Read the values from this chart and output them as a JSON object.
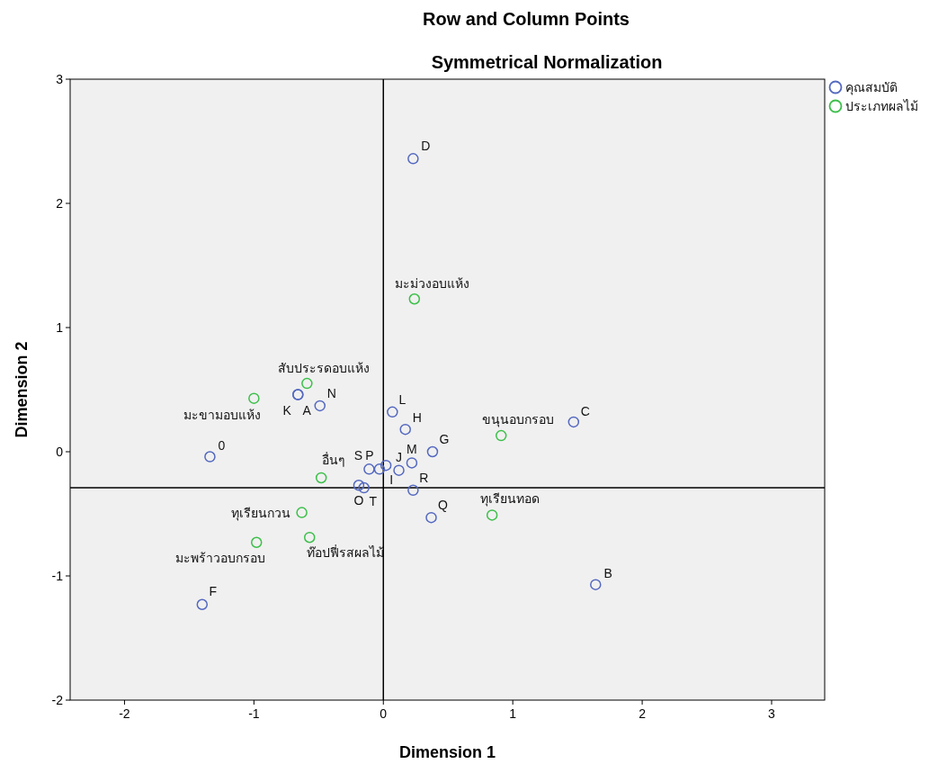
{
  "chart_data": {
    "type": "scatter",
    "title": "Row and Column Points",
    "subtitle": "Symmetrical Normalization",
    "xlabel": "Dimension 1",
    "ylabel": "Dimension 2",
    "xlim": [
      -2.42,
      3.41
    ],
    "ylim": [
      -2,
      3
    ],
    "xticks": [
      -2,
      -1,
      0,
      1,
      2,
      3
    ],
    "yticks": [
      -2,
      -1,
      0,
      1,
      2,
      3
    ],
    "grid": false,
    "legend": "top right",
    "marker": "circle",
    "ref_lines": [
      {
        "axis": "x",
        "value": 0,
        "color": "#000000"
      },
      {
        "axis": "y",
        "value": -0.29,
        "color": "#000000"
      }
    ],
    "series": [
      {
        "name": "คุณสมบัติ",
        "color": "#5468c0",
        "x": [
          0.23,
          1.47,
          1.64,
          -1.4,
          -1.34,
          -0.66,
          -0.66,
          -0.49,
          0.07,
          0.17,
          0.38,
          0.22,
          0.12,
          0.02,
          -0.11,
          -0.03,
          0.23,
          -0.19,
          -0.15,
          0.37
        ],
        "values": [
          2.36,
          0.24,
          -1.07,
          -1.23,
          -0.04,
          0.46,
          0.46,
          0.37,
          0.32,
          0.18,
          0.0,
          -0.09,
          -0.15,
          -0.11,
          -0.14,
          -0.14,
          -0.31,
          -0.27,
          -0.29,
          -0.53
        ],
        "value_labels": [
          "D",
          "C",
          "B",
          "F",
          "0",
          "K",
          "A",
          "N",
          "L",
          "H",
          "G",
          "M",
          "J",
          "I",
          "S",
          "P",
          "R",
          "O",
          "T",
          "Q"
        ]
      },
      {
        "name": "ประเภทผลไม้",
        "color": "#3cbf4a",
        "x": [
          0.24,
          -0.59,
          -1.0,
          -0.48,
          0.91,
          0.84,
          -0.63,
          -0.57,
          -0.98
        ],
        "values": [
          1.23,
          0.55,
          0.43,
          -0.21,
          0.13,
          -0.51,
          -0.49,
          -0.69,
          -0.73
        ],
        "value_labels": [
          "มะม่วงอบแห้ง",
          "สับประรดอบแห้ง",
          "มะขามอบแห้ง",
          "อื่นๆ",
          "ขนุนอบกรอบ",
          "ทุเรียนทอด",
          "ทุเรียนกวน",
          "ท๊อปฟี่รสผลไม้",
          "มะพร้าวอบกรอบ"
        ]
      }
    ]
  }
}
